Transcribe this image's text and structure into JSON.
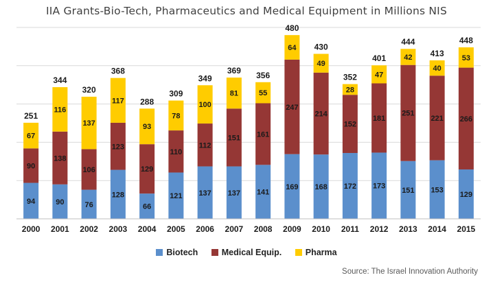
{
  "chart_data": {
    "type": "bar",
    "stacked": true,
    "title": "IIA Grants-Bio-Tech, Pharmaceutics and Medical Equipment in Millions NIS",
    "source": "Source: The Israel Innovation Authority",
    "categories": [
      "2000",
      "2001",
      "2002",
      "2003",
      "2004",
      "2005",
      "2006",
      "2007",
      "2008",
      "2009",
      "2010",
      "2011",
      "2012",
      "2013",
      "2014",
      "2015"
    ],
    "series": [
      {
        "name": "Biotech",
        "color": "#5B8FCC",
        "values": [
          94,
          90,
          76,
          128,
          66,
          121,
          137,
          137,
          141,
          169,
          168,
          172,
          173,
          151,
          153,
          129
        ]
      },
      {
        "name": "Medical Equip.",
        "color": "#953735",
        "values": [
          90,
          138,
          106,
          123,
          129,
          110,
          112,
          151,
          161,
          247,
          214,
          152,
          181,
          251,
          221,
          266
        ]
      },
      {
        "name": "Pharma",
        "color": "#FFCC00",
        "values": [
          67,
          116,
          137,
          117,
          93,
          78,
          100,
          81,
          55,
          64,
          49,
          28,
          47,
          42,
          40,
          53
        ]
      }
    ],
    "totals": [
      251,
      344,
      320,
      368,
      288,
      309,
      349,
      369,
      356,
      480,
      430,
      352,
      401,
      444,
      413,
      448
    ],
    "ylim": [
      0,
      500
    ],
    "grid": true,
    "xlabel": "",
    "ylabel": "",
    "legend_position": "bottom"
  }
}
